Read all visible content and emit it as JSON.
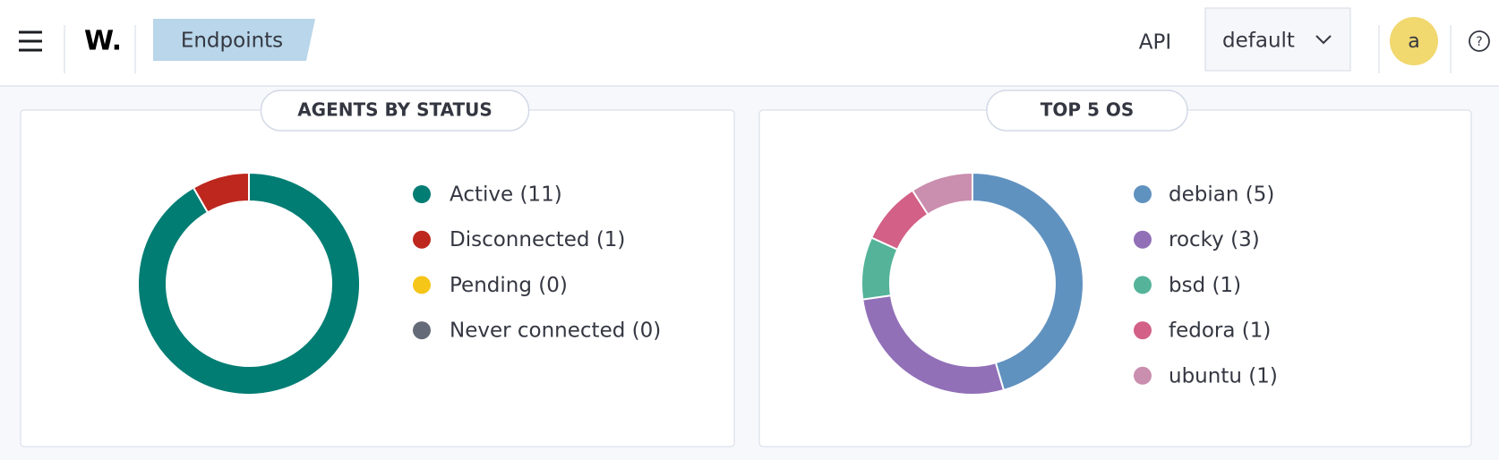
{
  "header": {
    "logo": "W.",
    "breadcrumb": "Endpoints",
    "api": "API",
    "selector": "default",
    "avatar": "a",
    "help": "?"
  },
  "chart_data": [
    {
      "type": "pie",
      "title": "AGENTS BY STATUS",
      "categories": [
        "Active (11)",
        "Disconnected (1)",
        "Pending (0)",
        "Never connected (0)"
      ],
      "values": [
        11,
        1,
        0,
        0
      ],
      "colors": [
        "#017d73",
        "#bd271e",
        "#f5c518",
        "#646a77"
      ]
    },
    {
      "type": "pie",
      "title": "TOP 5 OS",
      "categories": [
        "debian (5)",
        "rocky (3)",
        "bsd (1)",
        "fedora (1)",
        "ubuntu (1)"
      ],
      "values": [
        5,
        3,
        1,
        1,
        1
      ],
      "colors": [
        "#6092c0",
        "#9170b8",
        "#54b399",
        "#d36086",
        "#ca8eae"
      ]
    }
  ]
}
